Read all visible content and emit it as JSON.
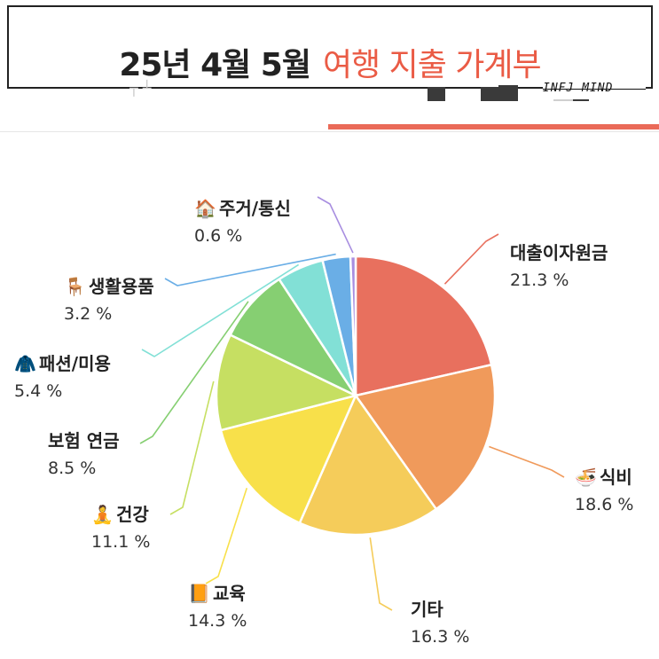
{
  "header": {
    "title_main": "25년 4월 5월",
    "title_accent": "여행 지출 가계부",
    "watermark": "INFJ MIND"
  },
  "colors": {
    "accent": "#ea5b45",
    "tab_active": "#ea6a58"
  },
  "chart_data": {
    "type": "pie",
    "title": "",
    "start_angle_deg": 0,
    "direction": "clockwise",
    "slices": [
      {
        "label": "대출이자원금",
        "value": 21.3,
        "value_text": "21.3 %",
        "color": "#e8705e",
        "icon": ""
      },
      {
        "label": "식비",
        "value": 18.6,
        "value_text": "18.6 %",
        "color": "#f09a5b",
        "icon": "noodle-bowl-icon"
      },
      {
        "label": "기타",
        "value": 16.3,
        "value_text": "16.3 %",
        "color": "#f5cc5a",
        "icon": ""
      },
      {
        "label": "교육",
        "value": 14.3,
        "value_text": "14.3 %",
        "color": "#f8e04a",
        "icon": "book-icon"
      },
      {
        "label": "건강",
        "value": 11.1,
        "value_text": "11.1 %",
        "color": "#c6df62",
        "icon": "meditation-icon"
      },
      {
        "label": "보험 연금",
        "value": 8.5,
        "value_text": "8.5 %",
        "color": "#86cf72",
        "icon": ""
      },
      {
        "label": "패션/미용",
        "value": 5.4,
        "value_text": "5.4 %",
        "color": "#82e0d6",
        "icon": "coat-icon"
      },
      {
        "label": "생활용품",
        "value": 3.2,
        "value_text": "3.2 %",
        "color": "#6aaee6",
        "icon": "chair-icon"
      },
      {
        "label": "주거/통신",
        "value": 0.6,
        "value_text": "0.6 %",
        "color": "#a88ee0",
        "icon": "house-icon"
      }
    ],
    "legend": "callout-labels"
  }
}
